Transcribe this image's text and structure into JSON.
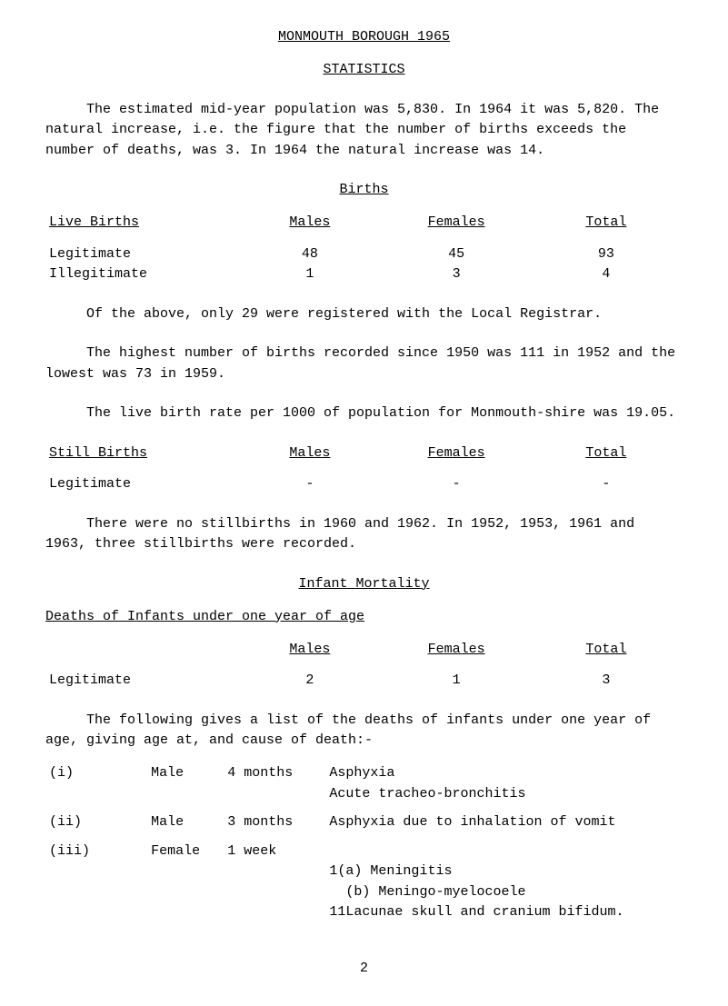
{
  "title_line1": "MONMOUTH BOROUGH 1965",
  "title_line2": "STATISTICS",
  "para1": "The estimated mid-year population was 5,830.  In 1964 it was 5,820.  The natural increase, i.e. the figure that the number of births exceeds the number of deaths, was 3. In 1964 the natural increase was 14.",
  "births_heading": "Births",
  "tbl_head": {
    "live_births": "Live Births",
    "males": "Males",
    "females": "Females",
    "total": "Total"
  },
  "births_rows": {
    "legitimate": {
      "label": "Legitimate",
      "m": "48",
      "f": "45",
      "t": "93"
    },
    "illegitimate": {
      "label": "Illegitimate",
      "m": "1",
      "f": "3",
      "t": "4"
    }
  },
  "para2": "Of the above, only 29 were registered with the Local Registrar.",
  "para3": "The highest number of births recorded since 1950 was 111 in 1952 and the lowest was 73 in 1959.",
  "para4": "The live birth rate per 1000 of population for Monmouth-shire was 19.05.",
  "still_births_heading": "Still Births",
  "still_row": {
    "label": "Legitimate",
    "m": "-",
    "f": "-",
    "t": "-"
  },
  "para5": "There were no stillbirths in 1960 and 1962.  In 1952, 1953, 1961 and 1963, three stillbirths were recorded.",
  "infant_heading": "Infant Mortality",
  "deaths_heading": "Deaths of Infants under one year of age",
  "deaths_row": {
    "label": "Legitimate",
    "m": "2",
    "f": "1",
    "t": "3"
  },
  "para6": "The following gives a list of the deaths of infants under one year of age, giving age at, and cause of death:-",
  "causes": [
    {
      "id": "(i)",
      "sex": "Male",
      "age": "4 months",
      "lines": [
        "Asphyxia",
        "Acute tracheo-bronchitis"
      ]
    },
    {
      "id": "(ii)",
      "sex": "Male",
      "age": "3 months",
      "lines": [
        "Asphyxia due to inhalation of vomit"
      ]
    },
    {
      "id": "(iii)",
      "sex": "Female",
      "age": "1 week",
      "lines": [
        "1(a) Meningitis",
        "  (b) Meningo-myelocoele",
        "11Lacunae skull and cranium bifidum."
      ]
    }
  ],
  "page_number": "2"
}
